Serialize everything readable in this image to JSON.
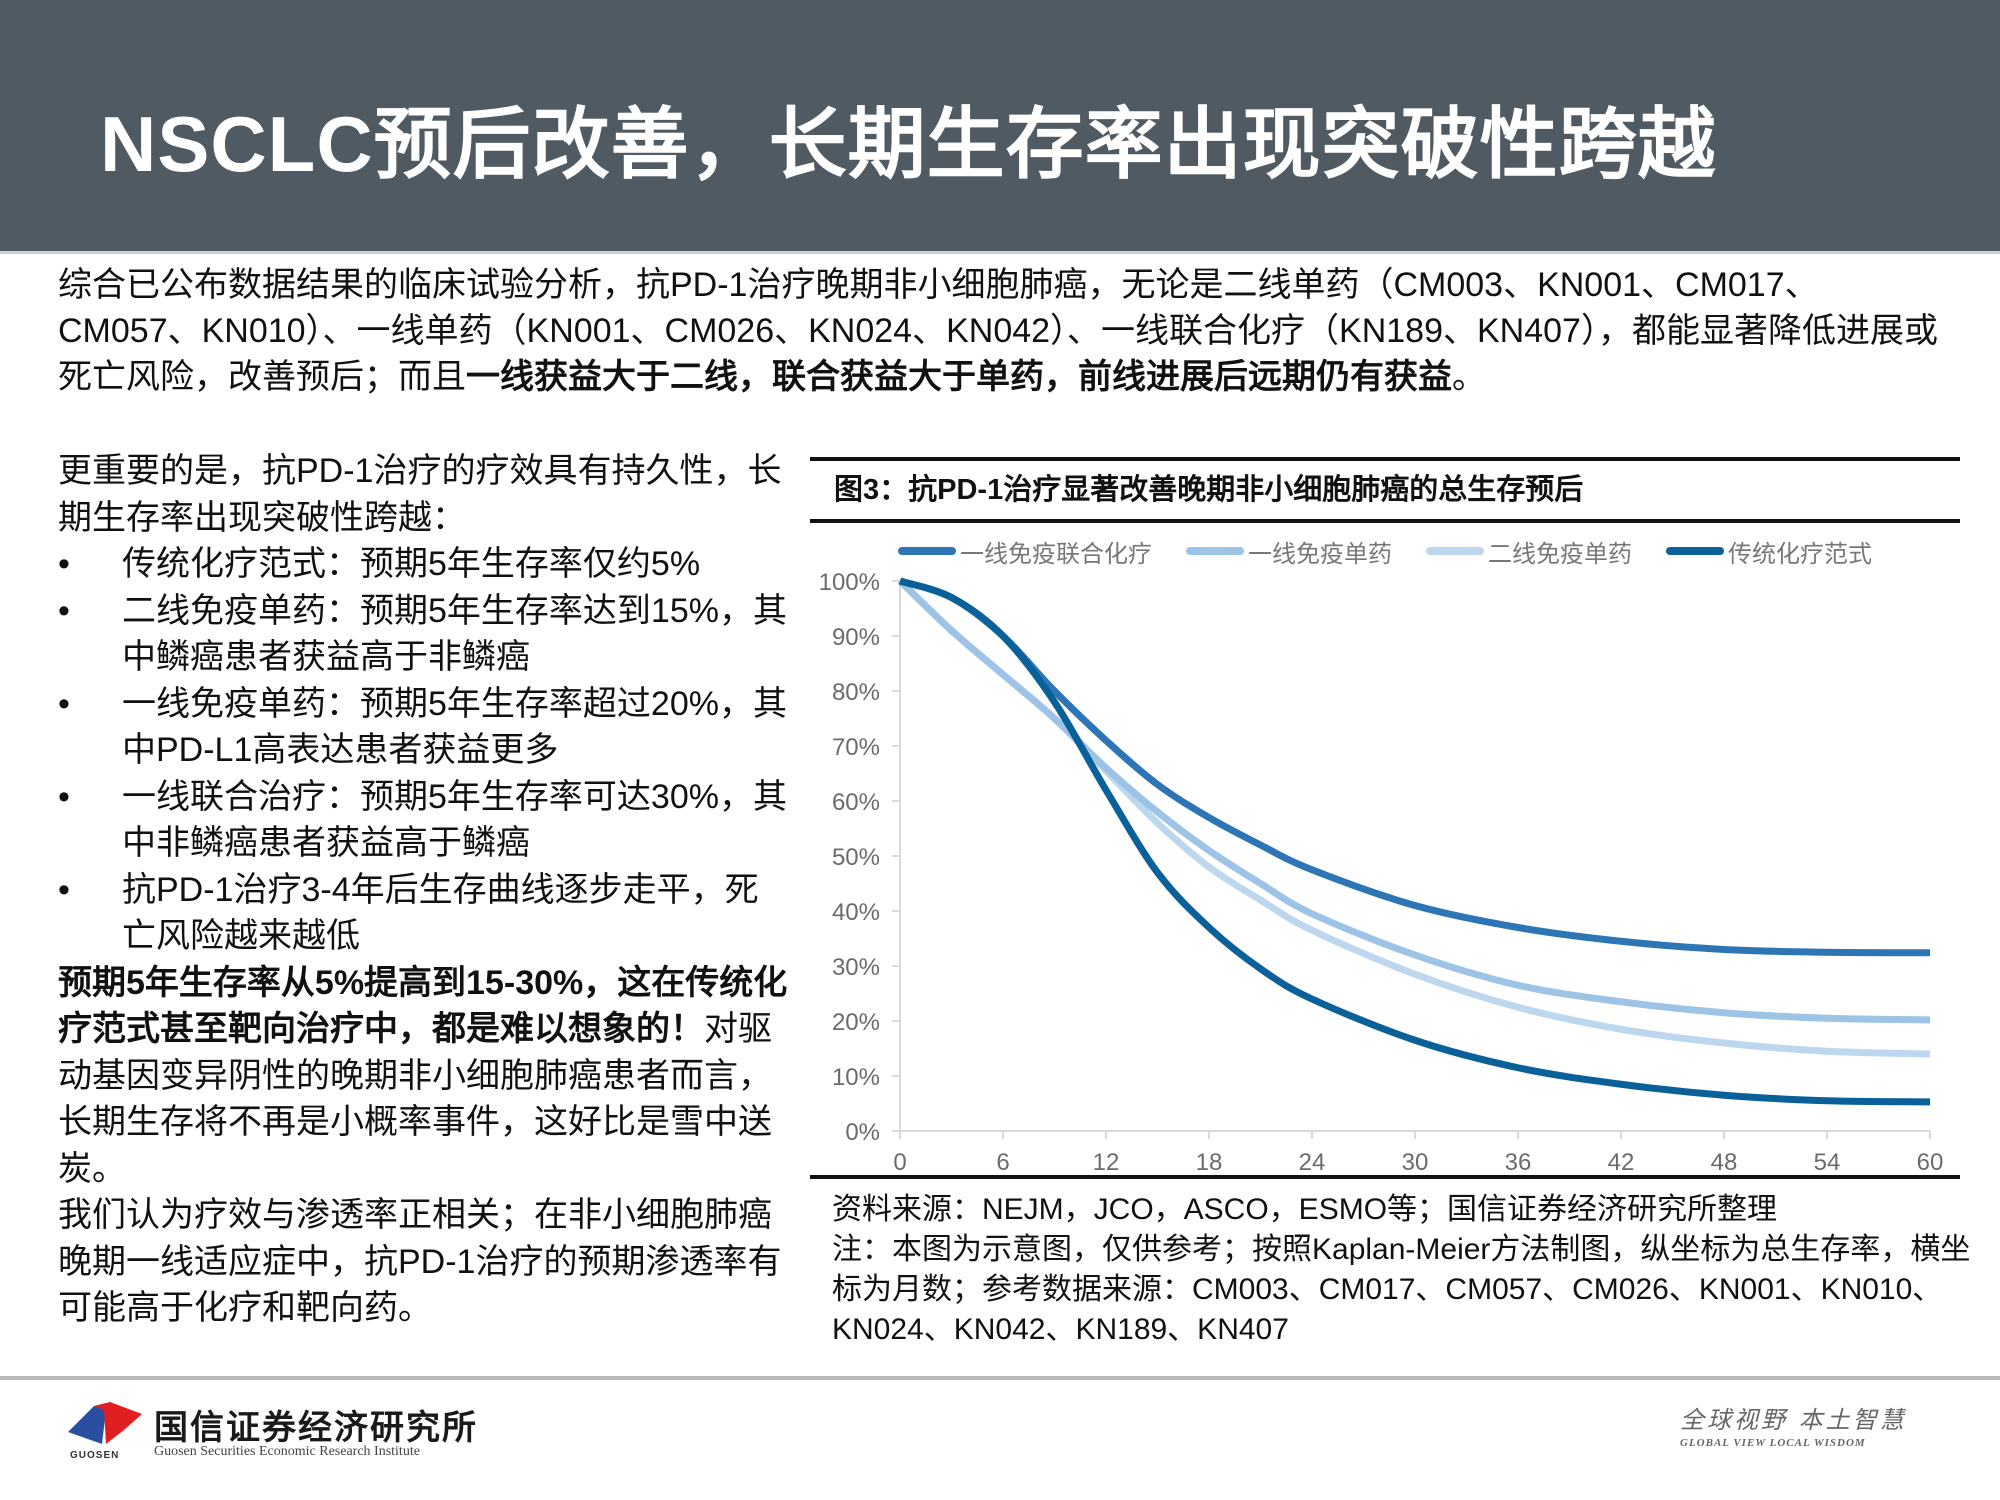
{
  "header": {
    "title": "NSCLC预后改善，长期生存率出现突破性跨越"
  },
  "intro": {
    "text_regular": "综合已公布数据结果的临床试验分析，抗PD-1治疗晚期非小细胞肺癌，无论是二线单药（CM003、KN001、CM017、CM057、KN010）、一线单药（KN001、CM026、KN024、KN042）、一线联合化疗（KN189、KN407），都能显著降低进展或死亡风险，改善预后；而且",
    "text_bold": "一线获益大于二线，联合获益大于单药，前线进展后远期仍有获益",
    "text_end": "。"
  },
  "left_column": {
    "lead": "更重要的是，抗PD-1治疗的疗效具有持久性，长期生存率出现突破性跨越：",
    "bullet_char": "•",
    "bullets": [
      "传统化疗范式：预期5年生存率仅约5%",
      "二线免疫单药：预期5年生存率达到15%，其中鳞癌患者获益高于非鳞癌",
      "一线免疫单药：预期5年生存率超过20%，其中PD-L1高表达患者获益更多",
      "一线联合治疗：预期5年生存率可达30%，其中非鳞癌患者获益高于鳞癌",
      "抗PD-1治疗3-4年后生存曲线逐步走平，死亡风险越来越低"
    ],
    "emphasis_bold": "预期5年生存率从5%提高到15-30%，这在传统化疗范式甚至靶向治疗中，都是难以想象的！",
    "emphasis_rest": "对驱动基因变异阴性的晚期非小细胞肺癌患者而言，长期生存将不再是小概率事件，这好比是雪中送炭。",
    "conclusion": "我们认为疗效与渗透率正相关；在非小细胞肺癌晚期一线适应症中，抗PD-1治疗的预期渗透率有可能高于化疗和靶向药。"
  },
  "figure": {
    "title": "图3：抗PD-1治疗显著改善晚期非小细胞肺癌的总生存预后",
    "source": "资料来源：NEJM，JCO，ASCO，ESMO等；国信证券经济研究所整理",
    "note": "注：本图为示意图，仅供参考；按照Kaplan-Meier方法制图，纵坐标为总生存率，横坐标为月数；参考数据来源：CM003、CM017、CM057、CM026、KN001、KN010、KN024、KN042、KN189、KN407"
  },
  "chart_data": {
    "type": "line",
    "title": "图3：抗PD-1治疗显著改善晚期非小细胞肺癌的总生存预后",
    "xlabel": "月数",
    "ylabel": "总生存率",
    "x": [
      0,
      3,
      6,
      9,
      12,
      15,
      18,
      21,
      24,
      30,
      36,
      42,
      48,
      54,
      60
    ],
    "x_ticks": [
      "0",
      "6",
      "12",
      "18",
      "24",
      "30",
      "36",
      "42",
      "48",
      "54",
      "60"
    ],
    "x_tick_values": [
      0,
      6,
      12,
      18,
      24,
      30,
      36,
      42,
      48,
      54,
      60
    ],
    "y_ticks": [
      "0%",
      "10%",
      "20%",
      "30%",
      "40%",
      "50%",
      "60%",
      "70%",
      "80%",
      "90%",
      "100%"
    ],
    "xlim": [
      0,
      60
    ],
    "ylim": [
      0,
      100
    ],
    "grid": false,
    "legend_position": "top",
    "series": [
      {
        "name": "一线免疫联合化疗",
        "color": "#2e75b6",
        "values": [
          100,
          97,
          90,
          80,
          71,
          63,
          57,
          52,
          47.5,
          41,
          37,
          34.5,
          33,
          32.5,
          32.4
        ]
      },
      {
        "name": "一线免疫单药",
        "color": "#9dc3e6",
        "values": [
          100,
          91,
          83,
          75,
          66,
          58,
          51,
          45,
          39.5,
          32,
          26.5,
          23.5,
          21.5,
          20.5,
          20.2
        ]
      },
      {
        "name": "二线免疫单药",
        "color": "#bdd7ee",
        "values": [
          100,
          91,
          83,
          75,
          65.5,
          56,
          48,
          42,
          36.5,
          28.5,
          22.5,
          18.5,
          16,
          14.5,
          14.0
        ]
      },
      {
        "name": "传统化疗范式",
        "color": "#0a6199",
        "values": [
          100,
          97,
          90,
          78,
          62,
          47,
          37,
          29.5,
          24,
          16.5,
          11.5,
          8.5,
          6.5,
          5.5,
          5.3
        ]
      }
    ]
  },
  "footer": {
    "logo_cn": "国信证券经济研究所",
    "logo_en": "Guosen Securities Economic Research Institute",
    "logo_mark_text": "GUOSEN",
    "slogan_cn": "全球视野  本土智慧",
    "slogan_en": "GLOBAL VIEW   LOCAL WISDOM",
    "logo_colors": {
      "blue": "#2a4fa0",
      "red": "#e02020"
    }
  },
  "colors": {
    "header_bg": "#4f5a62",
    "axis": "#d9d9d9",
    "tick_label": "#6b6b6b"
  }
}
